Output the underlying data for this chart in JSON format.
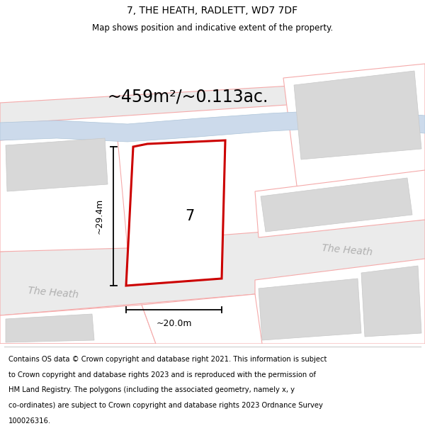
{
  "title": "7, THE HEATH, RADLETT, WD7 7DF",
  "subtitle": "Map shows position and indicative extent of the property.",
  "area_label": "~459m²/~0.113ac.",
  "height_label": "~29.4m",
  "width_label": "~20.0m",
  "property_number": "7",
  "road_label": "The Heath",
  "footer_lines": [
    "Contains OS data © Crown copyright and database right 2021. This information is subject",
    "to Crown copyright and database rights 2023 and is reproduced with the permission of",
    "HM Land Registry. The polygons (including the associated geometry, namely x, y",
    "co-ordinates) are subject to Crown copyright and database rights 2023 Ordnance Survey",
    "100026316."
  ],
  "road_fill": "#ebebeb",
  "road_edge": "#f5aaaa",
  "plot_fill": "#ffffff",
  "plot_edge": "#f5aaaa",
  "property_color": "#cc0000",
  "building_fill": "#d8d8d8",
  "building_edge": "#c8c8c8",
  "stream_fill": "#ccdaeb",
  "stream_edge": "#adc4d8",
  "road_label_color": "#b0b0b0",
  "title_fontsize": 10,
  "subtitle_fontsize": 8.5,
  "footer_fontsize": 7.2,
  "area_fontsize": 17,
  "dim_fontsize": 9,
  "prop_num_fontsize": 15,
  "road_text_fontsize": 10
}
